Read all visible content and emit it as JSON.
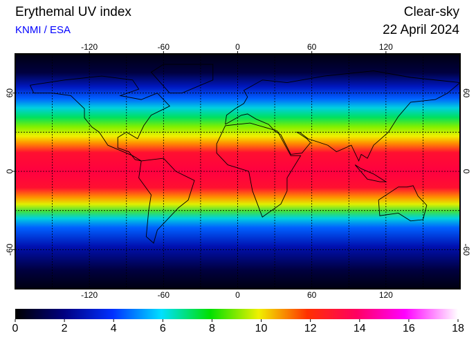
{
  "header": {
    "title": "Erythemal UV index",
    "source": "KNMI / ESA",
    "condition": "Clear-sky",
    "date": "22 April 2024"
  },
  "map": {
    "xlim": [
      -180,
      180
    ],
    "ylim": [
      -90,
      90
    ],
    "xticks": [
      -120,
      -60,
      0,
      60,
      120
    ],
    "yticks": [
      60,
      0,
      -60
    ]
  },
  "colorbar": {
    "range": [
      0,
      18
    ],
    "ticks": [
      0,
      2,
      4,
      6,
      8,
      10,
      12,
      14,
      16,
      18
    ]
  }
}
